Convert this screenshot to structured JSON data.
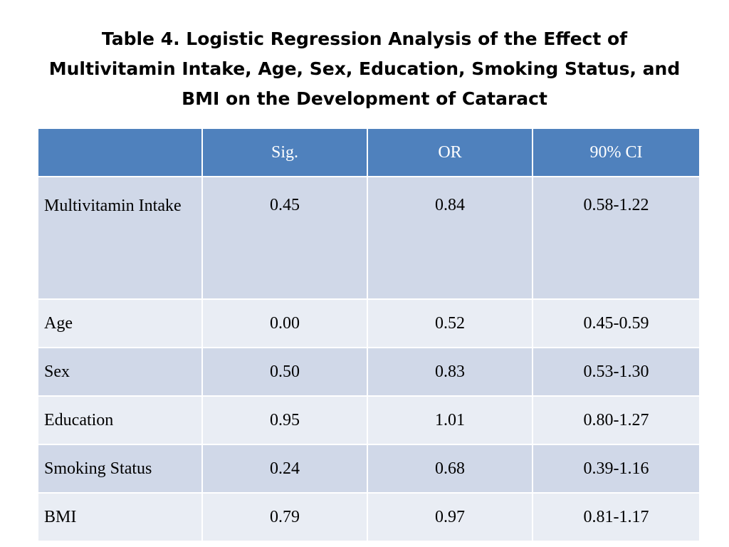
{
  "title": {
    "line1": "Table 4. Logistic Regression Analysis of the Effect of",
    "line2": "Multivitamin Intake, Age, Sex, Education, Smoking Status, and",
    "line3": "BMI on the Development of Cataract"
  },
  "table": {
    "headers": [
      "",
      "Sig.",
      "OR",
      "90% CI"
    ],
    "rows": [
      {
        "label": "Multivitamin Intake",
        "sig": "0.45",
        "or": "0.84",
        "ci": "0.58-1.22"
      },
      {
        "label": "Age",
        "sig": "0.00",
        "or": "0.52",
        "ci": "0.45-0.59"
      },
      {
        "label": "Sex",
        "sig": "0.50",
        "or": "0.83",
        "ci": "0.53-1.30"
      },
      {
        "label": "Education",
        "sig": "0.95",
        "or": "1.01",
        "ci": "0.80-1.27"
      },
      {
        "label": "Smoking Status",
        "sig": "0.24",
        "or": "0.68",
        "ci": "0.39-1.16"
      },
      {
        "label": "BMI",
        "sig": "0.79",
        "or": "0.97",
        "ci": "0.81-1.17"
      }
    ]
  },
  "colors": {
    "header_background": "#4f81bd",
    "row_band_a": "#d0d8e8",
    "row_band_b": "#e9edf4",
    "header_text": "#ffffff"
  }
}
